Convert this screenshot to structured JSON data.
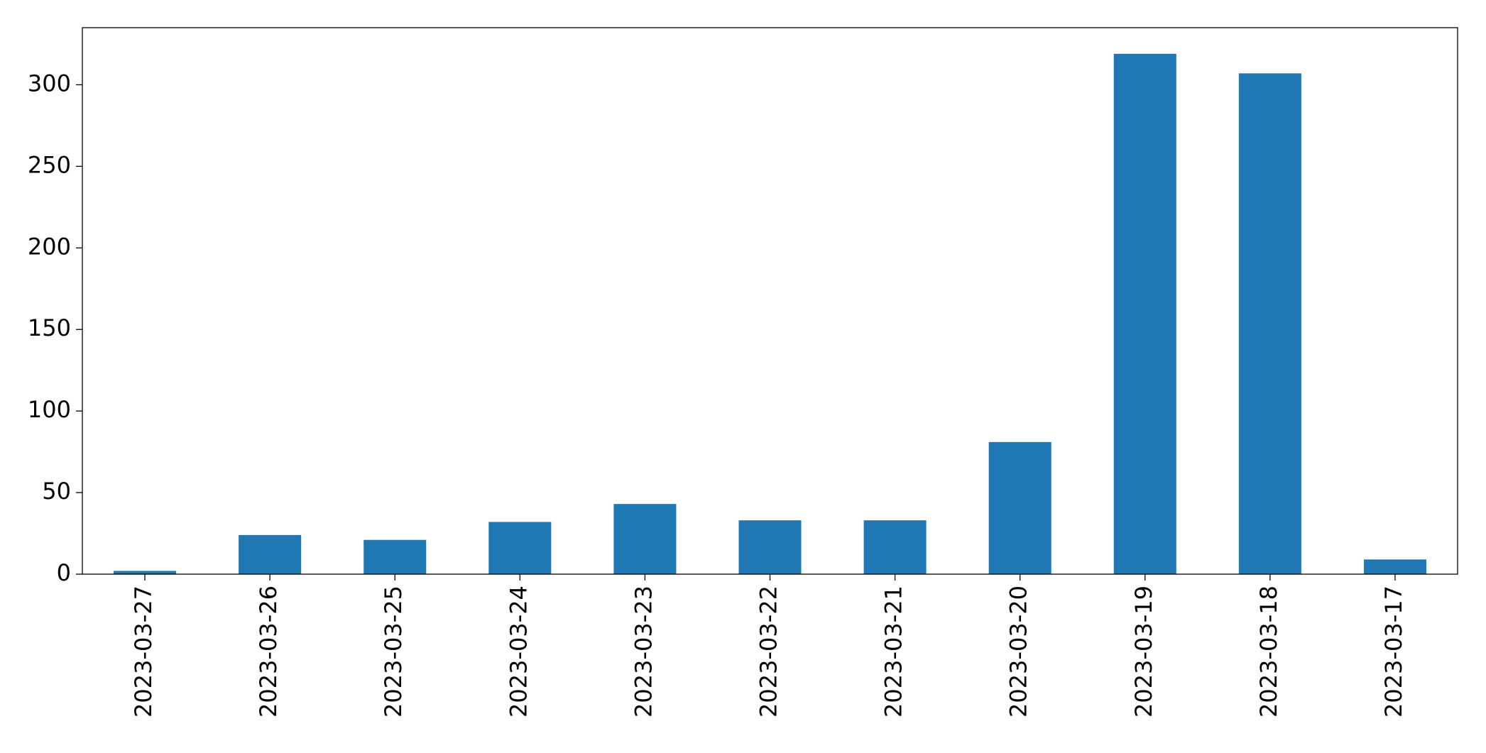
{
  "chart_data": {
    "type": "bar",
    "categories": [
      "2023-03-27",
      "2023-03-26",
      "2023-03-25",
      "2023-03-24",
      "2023-03-23",
      "2023-03-22",
      "2023-03-21",
      "2023-03-20",
      "2023-03-19",
      "2023-03-18",
      "2023-03-17"
    ],
    "values": [
      2,
      24,
      21,
      32,
      43,
      33,
      33,
      81,
      319,
      307,
      9
    ],
    "color": "#1f77b4",
    "ylim": [
      0,
      335
    ],
    "yticks": [
      0,
      50,
      100,
      150,
      200,
      250,
      300
    ],
    "grid": false
  }
}
